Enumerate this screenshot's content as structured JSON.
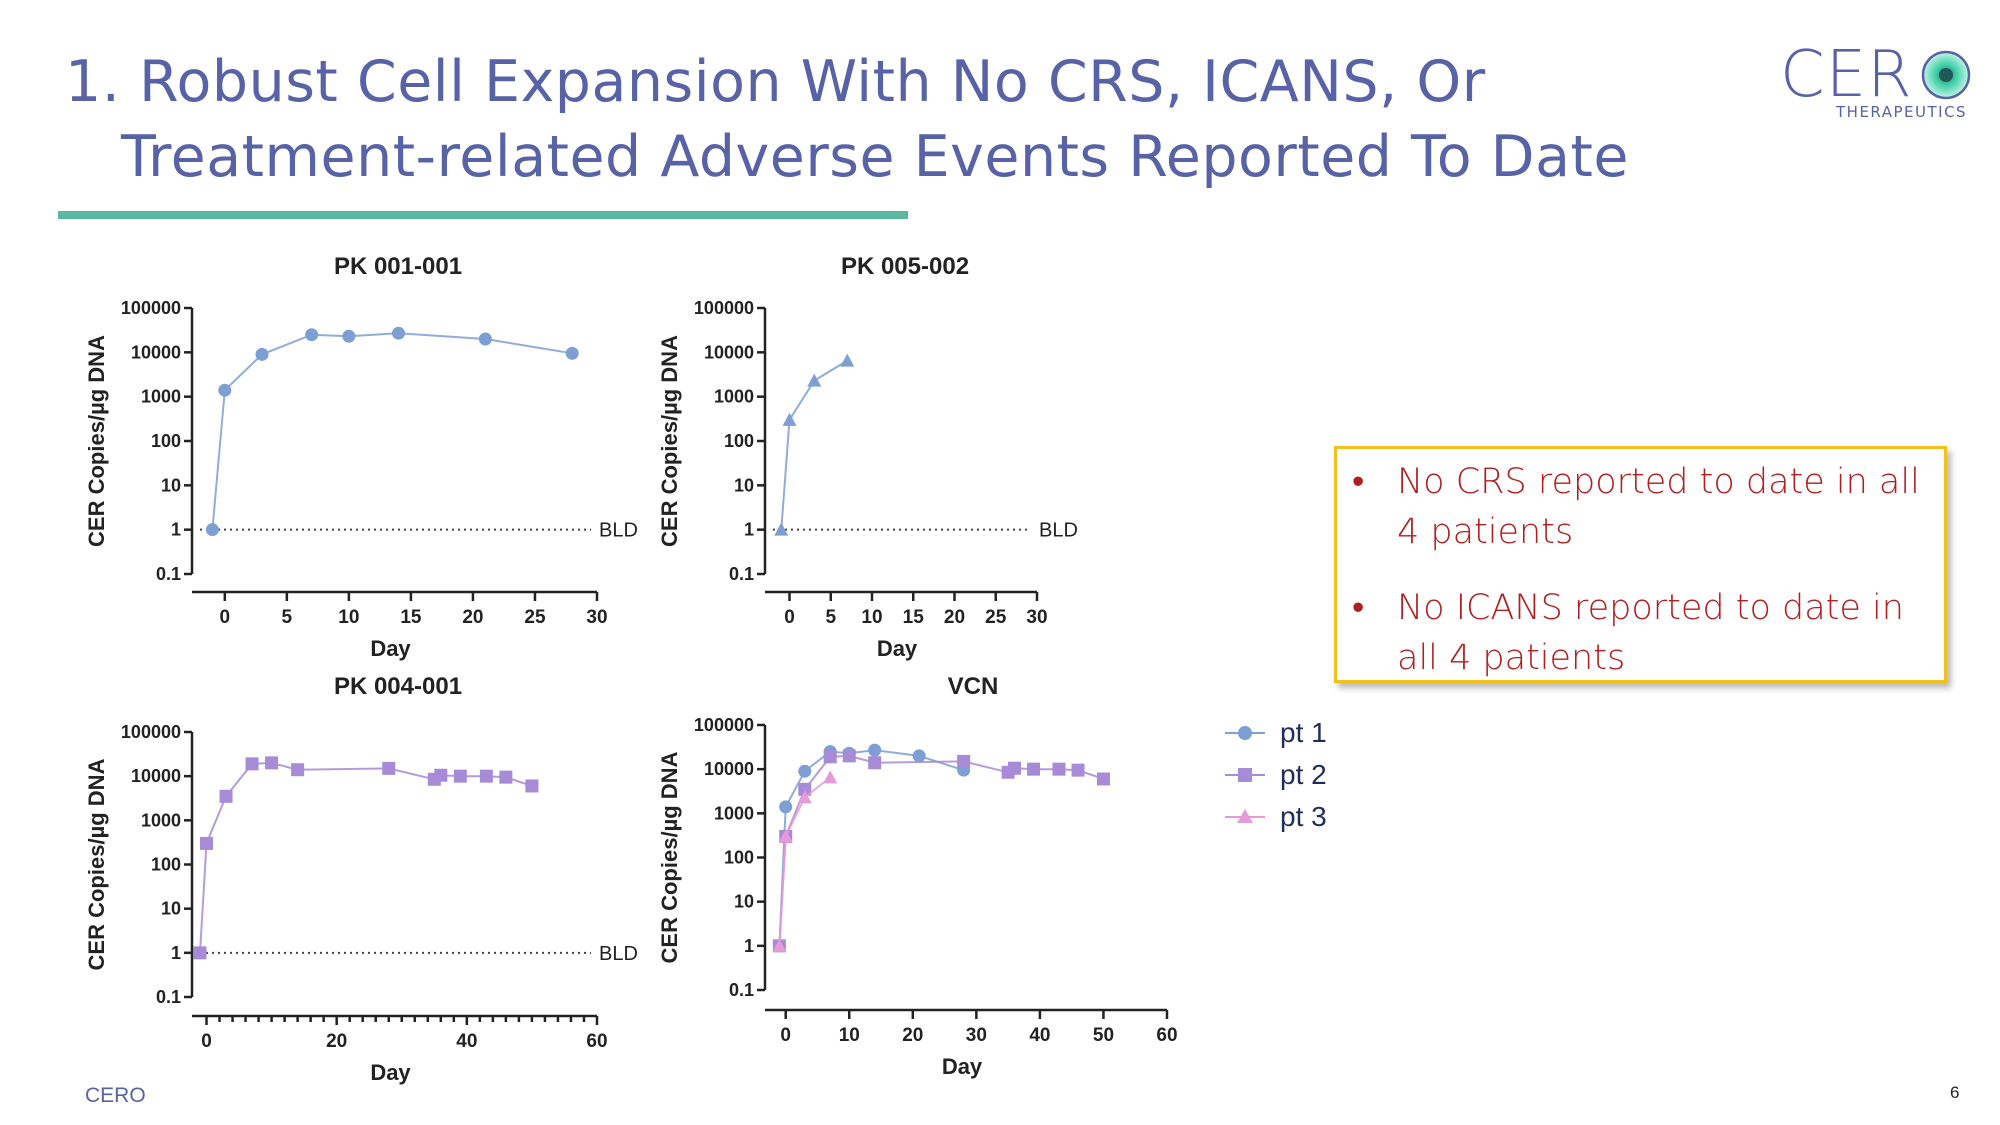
{
  "slide": {
    "title_line_1": "1. Robust Cell Expansion With No CRS, ICANS, Or",
    "title_line_2": "Treatment-related Adverse Events Reported To Date",
    "logo_text": "CER",
    "logo_subtext": "THERAPEUTICS",
    "footer_brand": "CERO",
    "page_number": "6",
    "colors": {
      "title": "#5862a6",
      "rule": "#58b8a0",
      "pt1": "#7d9fd4",
      "pt2": "#a78bd6",
      "pt3": "#e69ad8",
      "note_text": "#b11e1e",
      "note_border": "#f2c21b"
    }
  },
  "notes": {
    "items": [
      "No CRS reported to date in all 4 patients",
      "No ICANS reported to date in all 4 patients"
    ],
    "bullet": "•"
  },
  "legend": {
    "items": [
      {
        "label": "pt 1",
        "marker": "circle",
        "color": "#7d9fd4"
      },
      {
        "label": "pt 2",
        "marker": "square",
        "color": "#a78bd6"
      },
      {
        "label": "pt 3",
        "marker": "triangle",
        "color": "#e69ad8"
      }
    ]
  },
  "chart_data": [
    {
      "id": "pk001",
      "type": "line",
      "title": "PK 001-001",
      "xlabel": "Day",
      "ylabel": "CER Copies/µg DNA",
      "yscale": "log",
      "ylim": [
        0.1,
        100000
      ],
      "yticks": [
        "0.1",
        "1",
        "10",
        "100",
        "1000",
        "10000",
        "100000"
      ],
      "xlim": [
        -2,
        30
      ],
      "xticks": [
        0,
        5,
        10,
        15,
        20,
        25,
        30
      ],
      "bld_label": "BLD",
      "bld_value": 1,
      "series": [
        {
          "name": "pt 1",
          "marker": "circle",
          "color": "#7d9fd4",
          "x": [
            -1,
            0,
            3,
            7,
            10,
            14,
            21,
            28
          ],
          "y": [
            1,
            1400,
            9000,
            25000,
            23000,
            27000,
            20000,
            9500
          ]
        }
      ]
    },
    {
      "id": "pk005",
      "type": "line",
      "title": "PK 005-002",
      "xlabel": "Day",
      "ylabel": "CER Copies/µg DNA",
      "yscale": "log",
      "ylim": [
        0.1,
        100000
      ],
      "yticks": [
        "0.1",
        "1",
        "10",
        "100",
        "1000",
        "10000",
        "100000"
      ],
      "xlim": [
        -2,
        30
      ],
      "xticks": [
        0,
        5,
        10,
        15,
        20,
        25,
        30
      ],
      "bld_label": "BLD",
      "bld_value": 1,
      "series": [
        {
          "name": "pt 3",
          "marker": "triangle",
          "color": "#7d9fd4",
          "x": [
            -1,
            0,
            3,
            7
          ],
          "y": [
            1,
            300,
            2300,
            6500
          ]
        }
      ]
    },
    {
      "id": "pk004",
      "type": "line",
      "title": "PK 004-001",
      "xlabel": "Day",
      "ylabel": "CER Copies/µg DNA",
      "yscale": "log",
      "ylim": [
        0.1,
        100000
      ],
      "yticks": [
        "0.1",
        "1",
        "10",
        "100",
        "1000",
        "10000",
        "100000"
      ],
      "xlim": [
        -1,
        60
      ],
      "xticks": [
        0,
        20,
        40,
        60
      ],
      "minor_xticks": 2,
      "bld_label": "BLD",
      "bld_value": 1,
      "series": [
        {
          "name": "pt 2",
          "marker": "square",
          "color": "#a78bd6",
          "x": [
            -1,
            0,
            3,
            7,
            10,
            14,
            28,
            35,
            36,
            39,
            43,
            46,
            50
          ],
          "y": [
            1,
            300,
            3500,
            19000,
            20000,
            14000,
            15000,
            8500,
            10500,
            10000,
            10000,
            9500,
            6000
          ]
        }
      ]
    },
    {
      "id": "vcn",
      "type": "line",
      "title": "VCN",
      "xlabel": "Day",
      "ylabel": "CER Copies/µg DNA",
      "yscale": "log",
      "ylim": [
        0.1,
        100000
      ],
      "yticks": [
        "0.1",
        "1",
        "10",
        "100",
        "1000",
        "10000",
        "100000"
      ],
      "xlim": [
        -2,
        60
      ],
      "xticks": [
        0,
        10,
        20,
        30,
        40,
        50,
        60
      ],
      "series": [
        {
          "name": "pt 1",
          "marker": "circle",
          "color": "#7d9fd4",
          "x": [
            -1,
            0,
            3,
            7,
            10,
            14,
            21,
            28
          ],
          "y": [
            1,
            1400,
            9000,
            25000,
            23000,
            27000,
            20000,
            9500
          ]
        },
        {
          "name": "pt 2",
          "marker": "square",
          "color": "#a78bd6",
          "x": [
            -1,
            0,
            3,
            7,
            10,
            14,
            28,
            35,
            36,
            39,
            43,
            46,
            50
          ],
          "y": [
            1,
            300,
            3500,
            19000,
            20000,
            14000,
            15000,
            8500,
            10500,
            10000,
            10000,
            9500,
            6000
          ]
        },
        {
          "name": "pt 3",
          "marker": "triangle",
          "color": "#e69ad8",
          "x": [
            -1,
            0,
            3,
            7
          ],
          "y": [
            1,
            300,
            2300,
            6500
          ]
        }
      ]
    }
  ]
}
